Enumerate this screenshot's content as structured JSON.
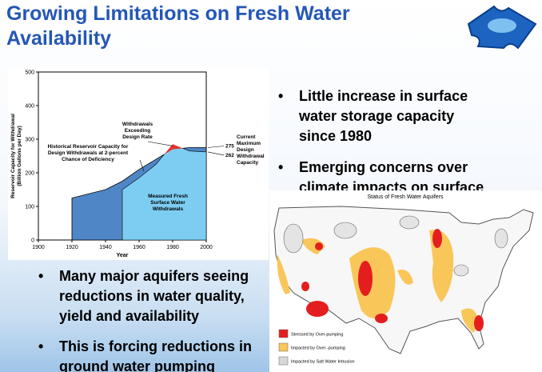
{
  "title": "Growing Limitations on Fresh Water Availability",
  "bullets_right": [
    "Little increase in surface water storage capacity since 1980",
    "Emerging concerns over climate impacts on surface"
  ],
  "bullets_left": [
    "Many major aquifers seeing reductions in water quality, yield and availability",
    "This is forcing reductions in ground water pumping"
  ],
  "chart_data": {
    "type": "area",
    "x_label": "Year",
    "y_label": "Reservoir Capacity for Withdrawal (Billion Gallons per Day)",
    "x": [
      1920,
      1940,
      1950,
      1960,
      1970,
      1980,
      1990,
      2000
    ],
    "series": [
      {
        "name": "Historical Reservoir Capacity for Design Withdrawals at 2-percent Chance of Deficiency",
        "color": "#4f86c6",
        "values": [
          125,
          150,
          175,
          210,
          240,
          270,
          275,
          275
        ]
      },
      {
        "name": "Measured Fresh Surface Water Withdrawals",
        "color": "#7dcdf2",
        "values": [
          null,
          null,
          150,
          185,
          225,
          285,
          265,
          262
        ]
      }
    ],
    "exceed_color": "#e8312a",
    "exceed_label": [
      "Withdrawals",
      "Exceeding",
      "Design Rate"
    ],
    "capacity_label": [
      "Current",
      "Maximum",
      "Design",
      "Withdrawal",
      "Capacity"
    ],
    "capacity_values": [
      275,
      262
    ],
    "xlim": [
      1900,
      2000
    ],
    "xticks": [
      1900,
      1920,
      1940,
      1960,
      1980,
      2000
    ],
    "ylim": [
      0,
      500
    ],
    "yticks": [
      0,
      100,
      200,
      300,
      400,
      500
    ]
  },
  "map": {
    "title": "Status of Fresh Water Aquifers",
    "legend": [
      {
        "label": "Stressed by Over-pumping",
        "color": "#e41e1e"
      },
      {
        "label": "Impacted by Over -pumping",
        "color": "#f9c65a"
      },
      {
        "label": "Impacted by Salt Water Intrusion",
        "color": "#d8d8d8"
      }
    ]
  }
}
